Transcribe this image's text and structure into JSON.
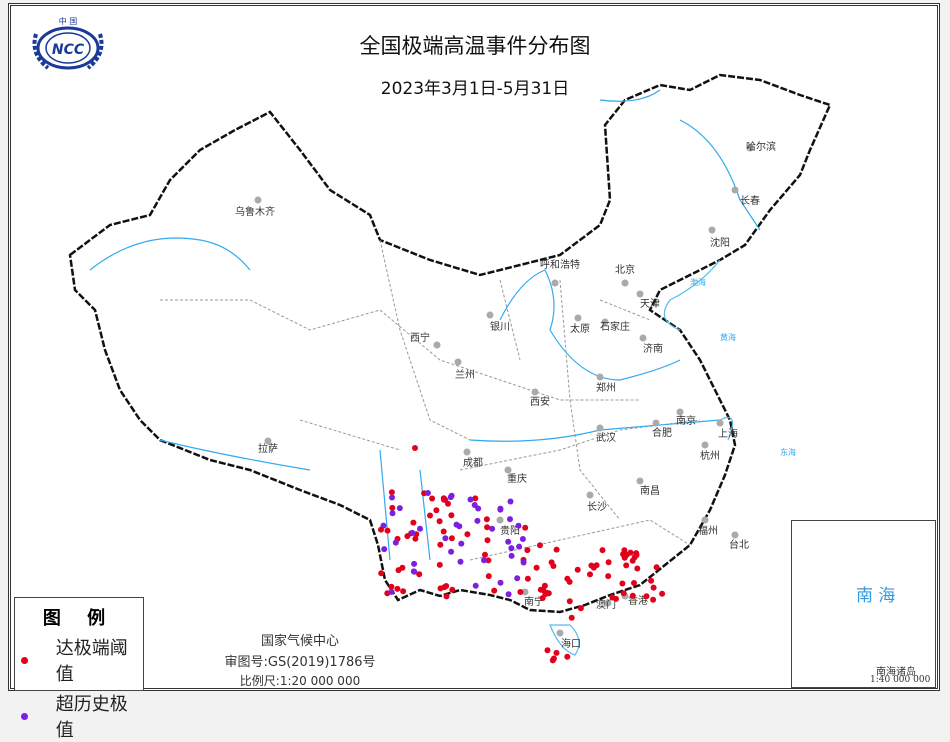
{
  "header": {
    "title": "全国极端高温事件分布图",
    "subtitle": "2023年3月1日-5月31日",
    "logo_text": "中国 NCC"
  },
  "legend": {
    "title": "图 例",
    "items": [
      {
        "label": "达极端阈值",
        "color": "#e3001b"
      },
      {
        "label": "超历史极值",
        "color": "#7b1fe0"
      }
    ]
  },
  "credits": {
    "org": "国家气候中心",
    "approval": "审图号:GS(2019)1786号",
    "scale": "比例尺:1:20 000 000"
  },
  "inset": {
    "sea_label": "南 海",
    "caption": "南海诸岛",
    "scale": "1:40 000 000"
  },
  "colors": {
    "boundary": "#999999",
    "water": "#33aaee",
    "coast": "#55bbee",
    "border": "#111111",
    "city": "#aaaaaa"
  },
  "cities": [
    "乌鲁木齐",
    "哈尔滨",
    "长春",
    "沈阳",
    "呼和浩特",
    "北京",
    "天津",
    "石家庄",
    "太原",
    "济南",
    "银川",
    "西宁",
    "兰州",
    "郑州",
    "西安",
    "南京",
    "合肥",
    "上海",
    "武汉",
    "杭州",
    "拉萨",
    "成都",
    "重庆",
    "南昌",
    "长沙",
    "福州",
    "贵阳",
    "台北",
    "南宁",
    "香港",
    "澳门",
    "海口"
  ],
  "water_labels": [
    "渤海",
    "黄海",
    "东海"
  ]
}
